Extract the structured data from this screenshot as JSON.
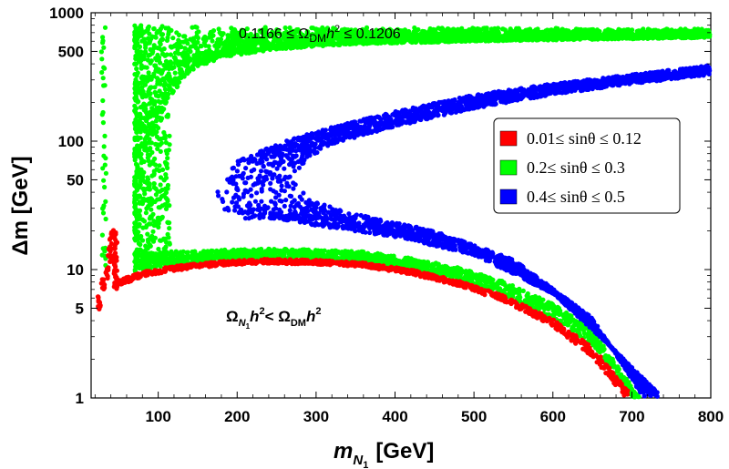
{
  "chart_data": {
    "type": "scatter",
    "title": "",
    "xlabel_base": "m",
    "xlabel_sub": "N",
    "xlabel_subsub": "1",
    "xlabel_unit": "[GeV]",
    "ylabel": "Δm [GeV]",
    "xscale": "linear",
    "yscale": "log",
    "xlim": [
      15,
      800
    ],
    "ylim": [
      1,
      1000
    ],
    "x_ticks": [
      "100",
      "200",
      "300",
      "400",
      "500",
      "600",
      "700",
      "800"
    ],
    "y_ticks": [
      "1",
      "5",
      "10",
      "50",
      "100",
      "500",
      "1000"
    ],
    "legend_position": "right",
    "relic_annotation": {
      "prefix": "0.1166 ≤ Ω",
      "sub": "DM",
      "mid": "h",
      "sup": "2",
      "suffix": " ≤ 0.1206"
    },
    "under_annotation": {
      "a": "Ω",
      "a_sub": "N",
      "a_subsub": "1",
      "b": "h",
      "b_sup": "2",
      "c": "< Ω",
      "c_sub": "DM",
      "d": "h",
      "d_sup": "2"
    },
    "series": [
      {
        "name": "0.01≤ sinθ ≤ 0.12",
        "color": "#ff0000",
        "description": "thin band",
        "band_lower": [
          [
            47,
            7.3
          ],
          [
            80,
            8.8
          ],
          [
            120,
            9.8
          ],
          [
            180,
            10.8
          ],
          [
            240,
            11.2
          ],
          [
            300,
            11.0
          ],
          [
            360,
            10.5
          ],
          [
            420,
            9.2
          ],
          [
            480,
            7.5
          ],
          [
            540,
            5.6
          ],
          [
            600,
            3.6
          ],
          [
            650,
            2.1
          ],
          [
            690,
            1.05
          ]
        ],
        "band_upper": [
          [
            47,
            8.2
          ],
          [
            80,
            9.6
          ],
          [
            120,
            10.7
          ],
          [
            180,
            11.6
          ],
          [
            240,
            12.1
          ],
          [
            300,
            11.9
          ],
          [
            360,
            11.3
          ],
          [
            420,
            10.0
          ],
          [
            480,
            8.2
          ],
          [
            540,
            6.2
          ],
          [
            600,
            4.1
          ],
          [
            650,
            2.5
          ],
          [
            695,
            1.15
          ]
        ],
        "spike": [
          [
            25,
            5.5
          ],
          [
            30,
            7.5
          ],
          [
            35,
            9.5
          ],
          [
            38,
            13
          ],
          [
            40,
            16
          ],
          [
            42,
            20
          ],
          [
            44,
            12
          ],
          [
            46,
            9
          ]
        ]
      },
      {
        "name": "0.2≤ sinθ ≤ 0.3",
        "color": "#00ff00",
        "upper_region": {
          "top": [
            [
              70,
              800
            ],
            [
              200,
              780
            ],
            [
              400,
              770
            ],
            [
              600,
              760
            ],
            [
              800,
              750
            ]
          ],
          "bottom": [
            [
              80,
              20
            ],
            [
              90,
              100
            ],
            [
              110,
              200
            ],
            [
              140,
              350
            ],
            [
              180,
              450
            ],
            [
              250,
              520
            ],
            [
              350,
              570
            ],
            [
              500,
              600
            ],
            [
              650,
              620
            ],
            [
              800,
              640
            ]
          ]
        },
        "lower_band_lower": [
          [
            70,
            9.6
          ],
          [
            120,
            10.8
          ],
          [
            180,
            11.7
          ],
          [
            240,
            12.2
          ],
          [
            300,
            12.0
          ],
          [
            360,
            11.4
          ],
          [
            420,
            10.1
          ],
          [
            480,
            8.3
          ],
          [
            540,
            6.3
          ],
          [
            600,
            4.2
          ],
          [
            650,
            2.6
          ],
          [
            700,
            1.0
          ]
        ],
        "lower_band_upper": [
          [
            70,
            13
          ],
          [
            120,
            14
          ],
          [
            180,
            14.2
          ],
          [
            240,
            14.5
          ],
          [
            300,
            14.3
          ],
          [
            360,
            13.8
          ],
          [
            420,
            12.3
          ],
          [
            480,
            10.4
          ],
          [
            540,
            8.0
          ],
          [
            600,
            5.4
          ],
          [
            650,
            3.4
          ],
          [
            710,
            1.0
          ]
        ],
        "column_x_range": [
          70,
          115
        ],
        "column_y_range": [
          13,
          800
        ]
      },
      {
        "name": "0.4≤ sinθ ≤ 0.5",
        "color": "#0000ff",
        "outer_edge": [
          [
            800,
            390
          ],
          [
            700,
            330
          ],
          [
            600,
            280
          ],
          [
            500,
            230
          ],
          [
            400,
            170
          ],
          [
            300,
            120
          ],
          [
            250,
            95
          ],
          [
            200,
            70
          ],
          [
            175,
            40
          ],
          [
            180,
            30
          ],
          [
            210,
            25
          ],
          [
            250,
            25
          ],
          [
            300,
            22
          ],
          [
            400,
            18
          ],
          [
            500,
            13
          ],
          [
            600,
            6.5
          ],
          [
            680,
            2.3
          ],
          [
            740,
            1.0
          ]
        ],
        "inner_edge": [
          [
            800,
            330
          ],
          [
            700,
            280
          ],
          [
            600,
            230
          ],
          [
            500,
            180
          ],
          [
            400,
            130
          ],
          [
            320,
            95
          ],
          [
            285,
            70
          ],
          [
            275,
            50
          ],
          [
            290,
            35
          ],
          [
            350,
            27
          ],
          [
            450,
            20
          ],
          [
            550,
            12
          ],
          [
            650,
            4.2
          ],
          [
            715,
            1.0
          ]
        ]
      }
    ]
  }
}
